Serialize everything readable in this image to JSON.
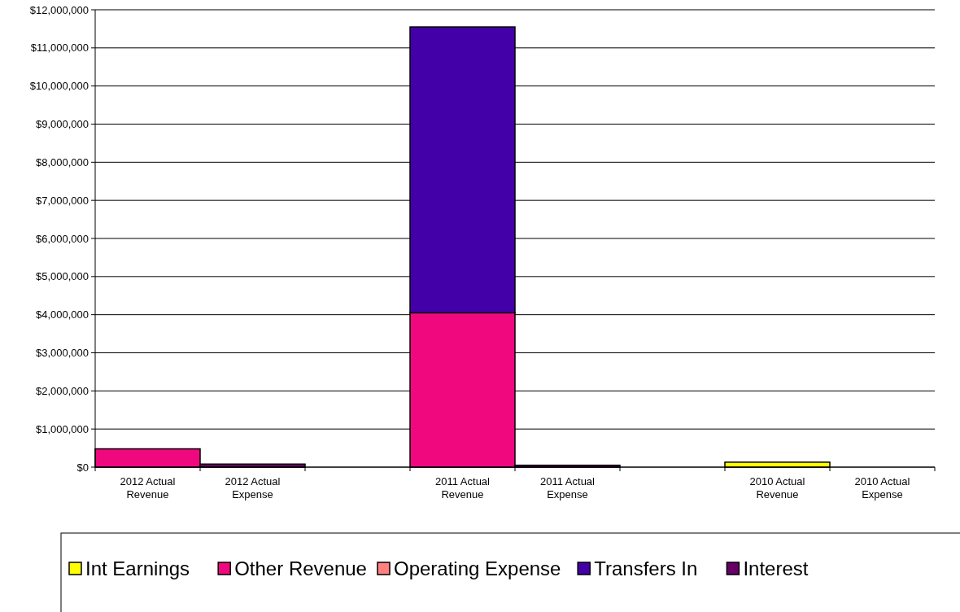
{
  "chart_data": {
    "type": "bar",
    "stacked": true,
    "categories": [
      "2012 Actual Revenue",
      "2012 Actual Expense",
      null,
      "2011 Actual Revenue",
      "2011 Actual Expense",
      null,
      "2010 Actual Revenue",
      "2010 Actual Expense"
    ],
    "series": [
      {
        "name": "Int Earnings",
        "color": "#ffff00",
        "values": [
          null,
          0,
          null,
          0,
          0,
          null,
          130000,
          0
        ]
      },
      {
        "name": "Other Revenue",
        "color": "#f0087f",
        "values": [
          480000,
          0,
          null,
          4050000,
          0,
          null,
          0,
          0
        ]
      },
      {
        "name": "Operating Expense",
        "color": "#ff8080",
        "values": [
          0,
          0,
          null,
          0,
          0,
          null,
          0,
          0
        ]
      },
      {
        "name": "Transfers In",
        "color": "#4400a8",
        "values": [
          0,
          0,
          null,
          7500000,
          0,
          null,
          0,
          0
        ]
      },
      {
        "name": "Interest",
        "color": "#660066",
        "values": [
          0,
          80000,
          null,
          0,
          50000,
          null,
          0,
          0
        ]
      }
    ],
    "ylim": [
      0,
      12000000
    ],
    "yticks": [
      {
        "value": 0,
        "label": "$0"
      },
      {
        "value": 1000000,
        "label": "$1,000,000"
      },
      {
        "value": 2000000,
        "label": "$2,000,000"
      },
      {
        "value": 3000000,
        "label": "$3,000,000"
      },
      {
        "value": 4000000,
        "label": "$4,000,000"
      },
      {
        "value": 5000000,
        "label": "$5,000,000"
      },
      {
        "value": 6000000,
        "label": "$6,000,000"
      },
      {
        "value": 7000000,
        "label": "$7,000,000"
      },
      {
        "value": 8000000,
        "label": "$8,000,000"
      },
      {
        "value": 9000000,
        "label": "$9,000,000"
      },
      {
        "value": 10000000,
        "label": "$10,000,000"
      },
      {
        "value": 11000000,
        "label": "$11,000,000"
      },
      {
        "value": 12000000,
        "label": "$12,000,000"
      }
    ],
    "grid": "y",
    "legend": "bottom"
  }
}
